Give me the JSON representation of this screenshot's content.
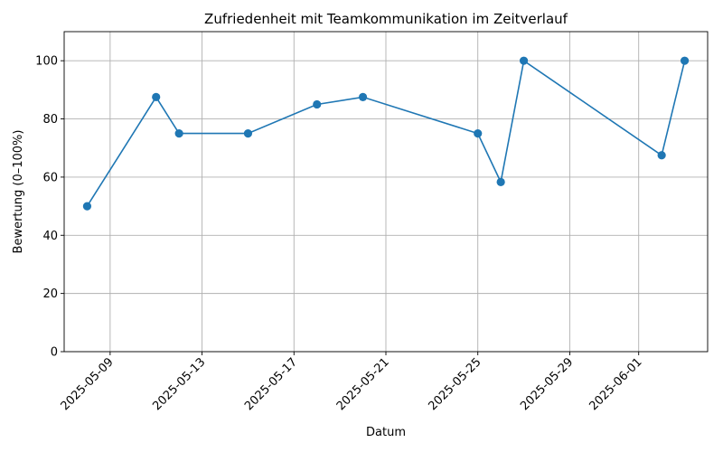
{
  "chart_data": {
    "type": "line",
    "title": "Zufriedenheit mit Teamkommunikation im Zeitverlauf",
    "xlabel": "Datum",
    "ylabel": "Bewertung (0–100%)",
    "x_tick_labels": [
      "2025-05-09",
      "2025-05-13",
      "2025-05-17",
      "2025-05-21",
      "2025-05-25",
      "2025-05-29",
      "2025-06-01"
    ],
    "y_tick_labels": [
      "0",
      "20",
      "40",
      "60",
      "80",
      "100"
    ],
    "xlim": [
      "2025-05-07",
      "2025-06-04"
    ],
    "ylim": [
      0,
      110
    ],
    "grid": true,
    "marker": "circle",
    "color": "#1f77b4",
    "series": [
      {
        "x": [
          "2025-05-08",
          "2025-05-11",
          "2025-05-12",
          "2025-05-15",
          "2025-05-18",
          "2025-05-20",
          "2025-05-25",
          "2025-05-26",
          "2025-05-27",
          "2025-06-02",
          "2025-06-03"
        ],
        "values": [
          50,
          87.5,
          75,
          75,
          85,
          87.5,
          75,
          58.3,
          100,
          67.5,
          100
        ]
      }
    ]
  }
}
